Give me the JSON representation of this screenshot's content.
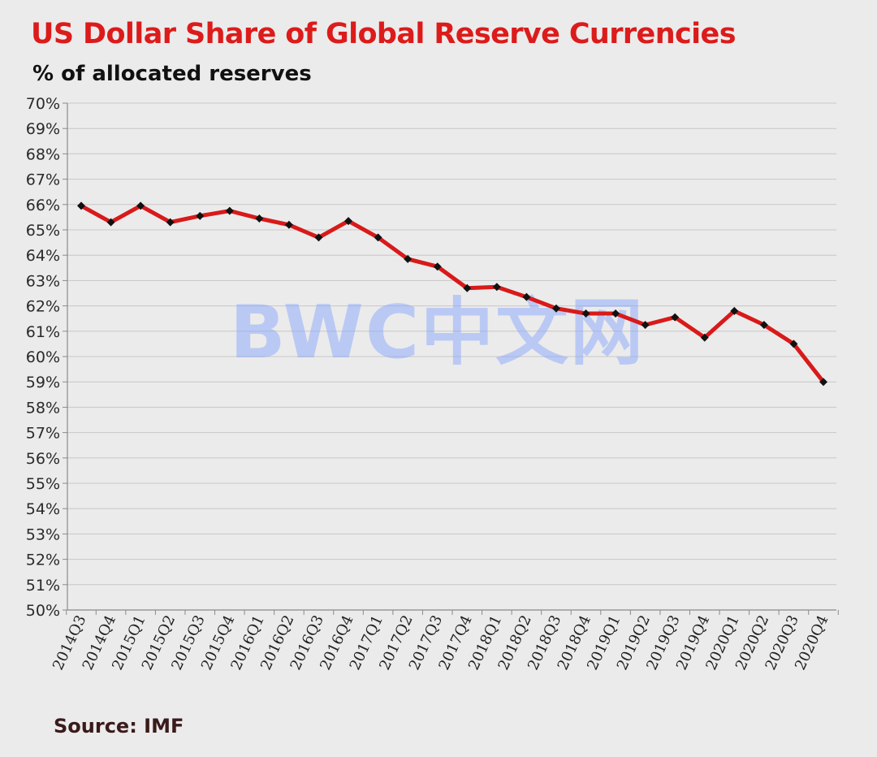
{
  "header": {
    "title": "US Dollar Share of Global Reserve Currencies",
    "subtitle": "% of allocated reserves"
  },
  "footer": {
    "source": "Source: IMF"
  },
  "watermark": "BWC中文网",
  "colors": {
    "line": "#d81a1a",
    "marker": "#111111",
    "grid": "#c8c8c8",
    "title": "#dc1b1b"
  },
  "chart_data": {
    "type": "line",
    "title": "US Dollar Share of Global Reserve Currencies",
    "subtitle": "% of allocated reserves",
    "xlabel": "",
    "ylabel": "",
    "ylim": [
      50,
      70
    ],
    "y_ticks": [
      "50%",
      "51%",
      "52%",
      "53%",
      "54%",
      "55%",
      "56%",
      "57%",
      "58%",
      "59%",
      "60%",
      "61%",
      "62%",
      "63%",
      "64%",
      "65%",
      "66%",
      "67%",
      "68%",
      "69%",
      "70%"
    ],
    "grid": true,
    "legend": "none",
    "categories": [
      "2014Q3",
      "2014Q4",
      "2015Q1",
      "2015Q2",
      "2015Q3",
      "2015Q4",
      "2016Q1",
      "2016Q2",
      "2016Q3",
      "2016Q4",
      "2017Q1",
      "2017Q2",
      "2017Q3",
      "2017Q4",
      "2018Q1",
      "2018Q2",
      "2018Q3",
      "2018Q4",
      "2019Q1",
      "2019Q2",
      "2019Q3",
      "2019Q4",
      "2020Q1",
      "2020Q2",
      "2020Q3",
      "2020Q4"
    ],
    "series": [
      {
        "values": [
          65.95,
          65.3,
          65.95,
          65.3,
          65.55,
          65.75,
          65.45,
          65.2,
          64.7,
          65.35,
          64.7,
          63.85,
          63.55,
          62.7,
          62.75,
          62.35,
          61.9,
          61.7,
          61.7,
          61.25,
          61.55,
          60.75,
          61.8,
          61.25,
          60.5,
          59.0
        ]
      }
    ]
  }
}
